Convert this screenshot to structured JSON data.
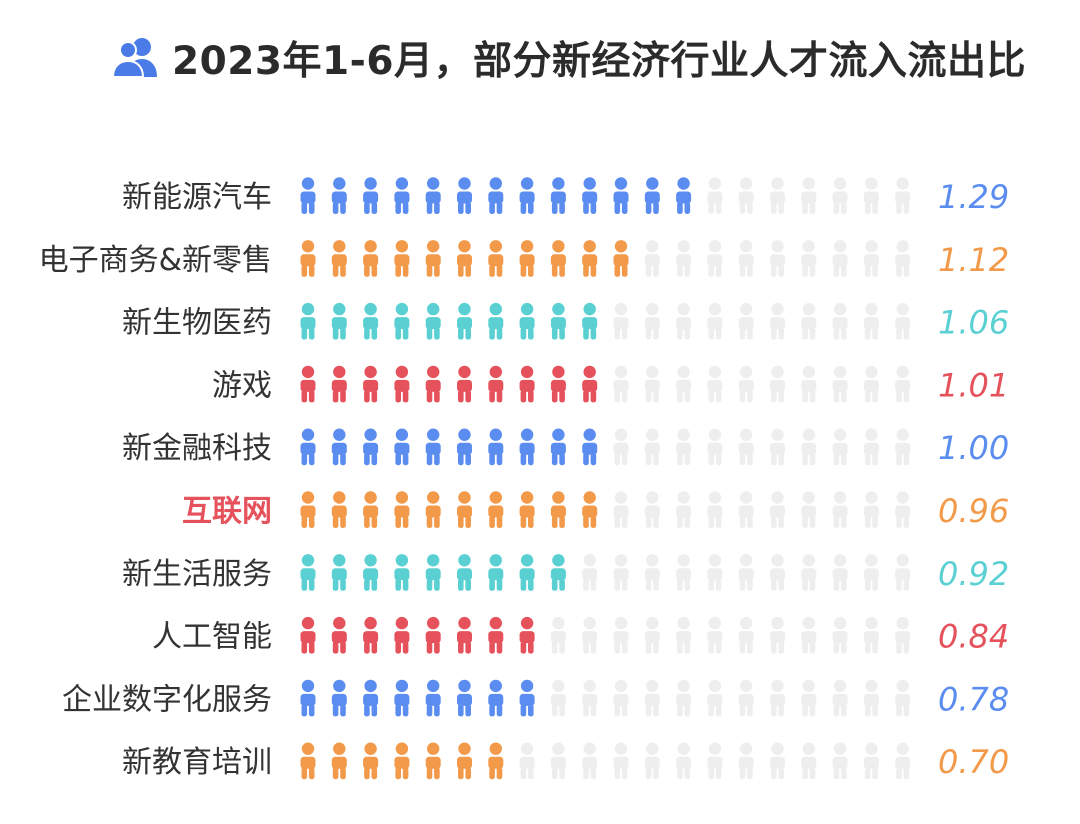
{
  "title": "2023年1-6月，部分新经济行业人才流入流出比",
  "title_icon": "users-icon",
  "colors": {
    "blue": "#5b8df0",
    "orange": "#f2994a",
    "teal": "#5ad0d3",
    "red": "#e5525c",
    "inactive": "#eeeeee",
    "title_icon": "#4a7be6"
  },
  "chart_data": {
    "type": "bar",
    "subtype": "pictogram",
    "max_icons": 20,
    "icon_name": "person-icon",
    "categories": [
      "新能源汽车",
      "电子商务&新零售",
      "新生物医药",
      "游戏",
      "新金融科技",
      "互联网",
      "新生活服务",
      "人工智能",
      "企业数字化服务",
      "新教育培训"
    ],
    "values": [
      1.29,
      1.12,
      1.06,
      1.01,
      1.0,
      0.96,
      0.92,
      0.84,
      0.78,
      0.7
    ],
    "value_labels": [
      "1.29",
      "1.12",
      "1.06",
      "1.01",
      "1.00",
      "0.96",
      "0.92",
      "0.84",
      "0.78",
      "0.70"
    ],
    "filled_icons": [
      13,
      11,
      10,
      10,
      10,
      10,
      9,
      8,
      8,
      7
    ],
    "row_colors": [
      "blue",
      "orange",
      "teal",
      "red",
      "blue",
      "orange",
      "teal",
      "red",
      "blue",
      "orange"
    ],
    "highlight_category": "互联网",
    "legend": "none",
    "grid": false
  }
}
